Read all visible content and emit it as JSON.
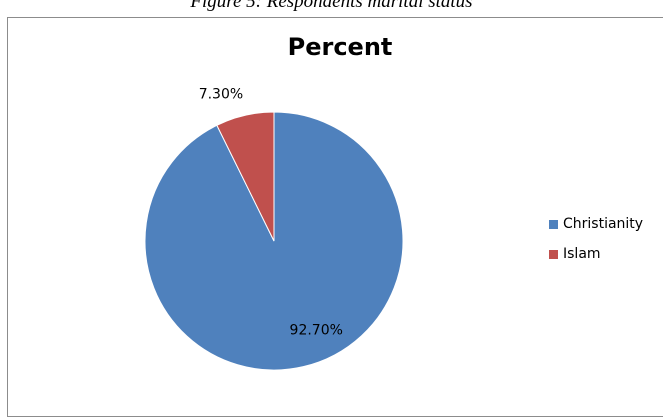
{
  "figure_caption": "Figure 5: Respondents marital status",
  "chart_data": {
    "type": "pie",
    "title": "Percent",
    "categories": [
      "Christianity",
      "Islam"
    ],
    "values": [
      92.7,
      7.3
    ],
    "data_labels": [
      "92.70%",
      "7.30%"
    ],
    "colors": [
      "#4F81BD",
      "#C0504D"
    ],
    "legend_placement": "right"
  }
}
